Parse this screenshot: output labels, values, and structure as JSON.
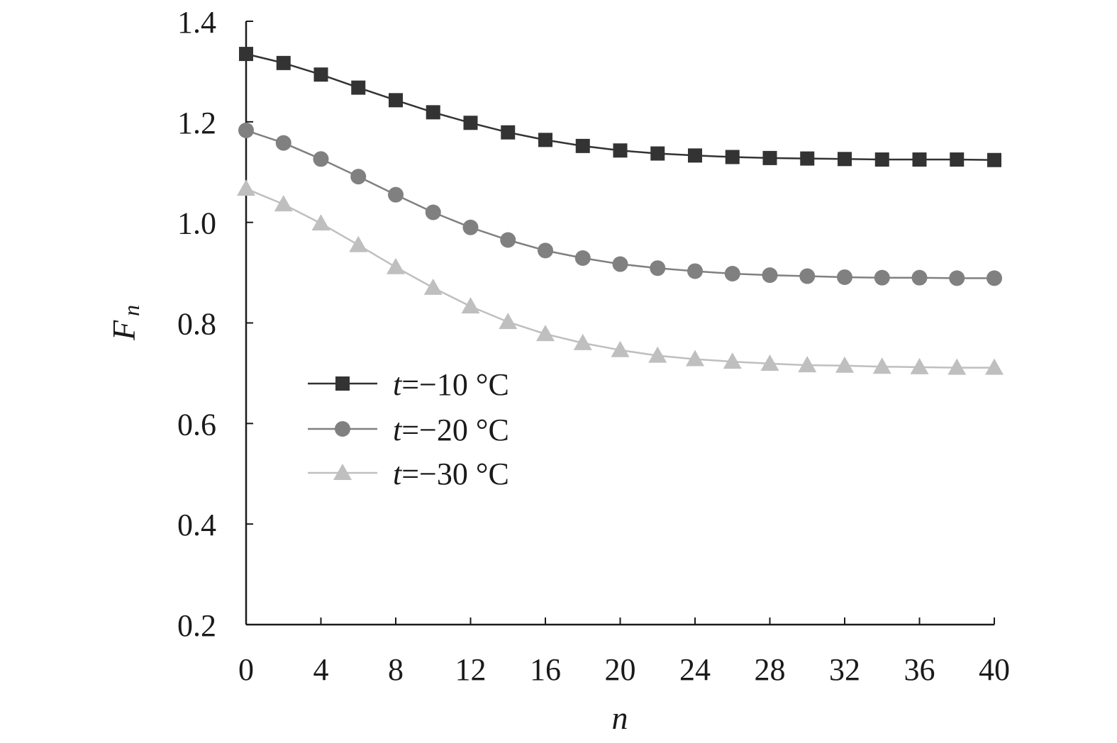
{
  "chart_data": {
    "type": "line",
    "xlabel": "n",
    "ylabel_main": "F",
    "ylabel_sub": "n",
    "xlim": [
      0,
      40
    ],
    "ylim": [
      0.2,
      1.4
    ],
    "x_ticks": [
      0,
      4,
      8,
      12,
      16,
      20,
      24,
      28,
      32,
      36,
      40
    ],
    "x_tick_labels": [
      "0",
      "4",
      "8",
      "12",
      "16",
      "20",
      "24",
      "28",
      "32",
      "36",
      "40"
    ],
    "y_ticks": [
      0.2,
      0.4,
      0.6,
      0.8,
      1.0,
      1.2,
      1.4
    ],
    "y_tick_labels": [
      "0.2",
      "0.4",
      "0.6",
      "0.8",
      "1.0",
      "1.2",
      "1.4"
    ],
    "grid": false,
    "legend_position": "center-left",
    "x": [
      0,
      2,
      4,
      6,
      8,
      10,
      12,
      14,
      16,
      18,
      20,
      22,
      24,
      26,
      28,
      30,
      32,
      34,
      36,
      38,
      40
    ],
    "series": [
      {
        "name_var": "t",
        "name_rest": "=−10 °C",
        "marker": "square",
        "color": "#333333",
        "values": [
          1.335,
          1.317,
          1.294,
          1.268,
          1.243,
          1.219,
          1.198,
          1.179,
          1.164,
          1.152,
          1.143,
          1.137,
          1.133,
          1.13,
          1.128,
          1.127,
          1.126,
          1.125,
          1.125,
          1.125,
          1.124
        ]
      },
      {
        "name_var": "t",
        "name_rest": "=−20 °C",
        "marker": "circle",
        "color": "#808080",
        "values": [
          1.183,
          1.158,
          1.126,
          1.091,
          1.055,
          1.02,
          0.99,
          0.965,
          0.944,
          0.929,
          0.917,
          0.909,
          0.903,
          0.898,
          0.895,
          0.893,
          0.891,
          0.89,
          0.89,
          0.889,
          0.889
        ]
      },
      {
        "name_var": "t",
        "name_rest": "=−30 °C",
        "marker": "triangle",
        "color": "#bfbfbf",
        "values": [
          1.067,
          1.036,
          0.998,
          0.955,
          0.911,
          0.87,
          0.833,
          0.802,
          0.778,
          0.76,
          0.746,
          0.735,
          0.728,
          0.723,
          0.719,
          0.716,
          0.715,
          0.713,
          0.712,
          0.711,
          0.711
        ]
      }
    ]
  }
}
